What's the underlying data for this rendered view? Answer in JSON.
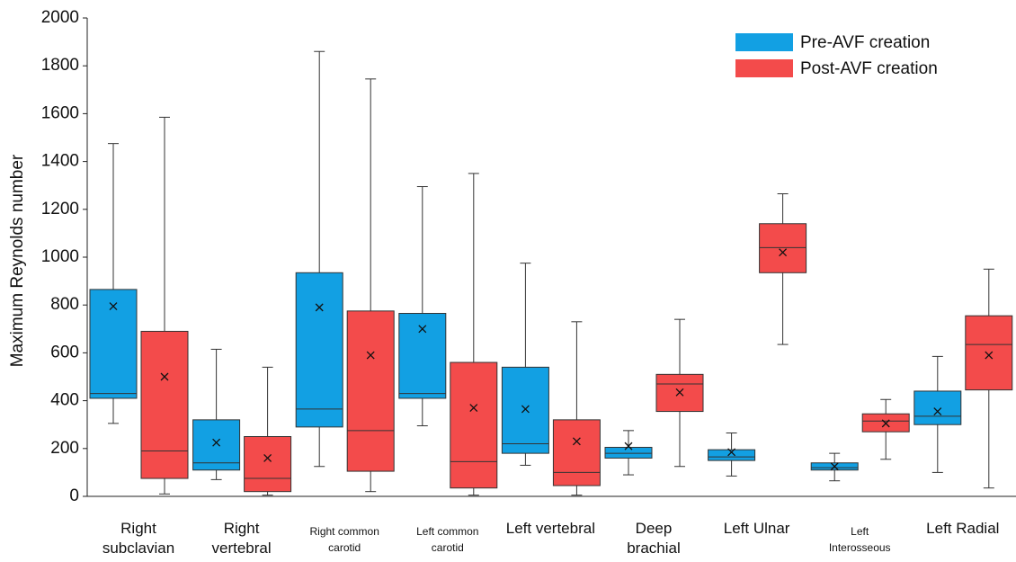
{
  "chart_data": {
    "type": "box",
    "y_label": "Maximum Reynolds number",
    "categories": [
      "Right subclavian",
      "Right vertebral",
      "Right common carotid",
      "Left common carotid",
      "Left vertebral",
      "Deep brachial",
      "Left Ulnar",
      "Left Interosseous",
      "Left Radial"
    ],
    "series": [
      {
        "name": "Pre-AVF creation",
        "color": "#12a0e3",
        "min": [
          305,
          70,
          125,
          295,
          130,
          90,
          85,
          65,
          100
        ],
        "q1": [
          410,
          110,
          290,
          410,
          180,
          160,
          150,
          110,
          300
        ],
        "median": [
          430,
          140,
          365,
          430,
          220,
          180,
          165,
          120,
          335
        ],
        "q3": [
          865,
          320,
          935,
          765,
          540,
          205,
          195,
          140,
          440
        ],
        "max": [
          1475,
          615,
          1860,
          1295,
          975,
          275,
          265,
          180,
          585
        ],
        "mean": [
          795,
          225,
          790,
          700,
          365,
          210,
          185,
          125,
          355
        ]
      },
      {
        "name": "Post-AVF creation",
        "color": "#f34b4b",
        "min": [
          10,
          5,
          20,
          5,
          5,
          125,
          635,
          155,
          35
        ],
        "q1": [
          75,
          20,
          105,
          35,
          45,
          355,
          935,
          270,
          445
        ],
        "median": [
          190,
          75,
          275,
          145,
          100,
          470,
          1040,
          315,
          635
        ],
        "q3": [
          690,
          250,
          775,
          560,
          320,
          510,
          1140,
          345,
          755
        ],
        "max": [
          1585,
          540,
          1745,
          1350,
          730,
          740,
          1265,
          405,
          950
        ],
        "mean": [
          500,
          160,
          590,
          370,
          230,
          435,
          1020,
          305,
          590
        ]
      }
    ],
    "ylim": [
      0,
      2000
    ],
    "yticks": [
      0,
      200,
      400,
      600,
      800,
      1000,
      1200,
      1400,
      1600,
      1800,
      2000
    ],
    "legend": "upper right"
  }
}
